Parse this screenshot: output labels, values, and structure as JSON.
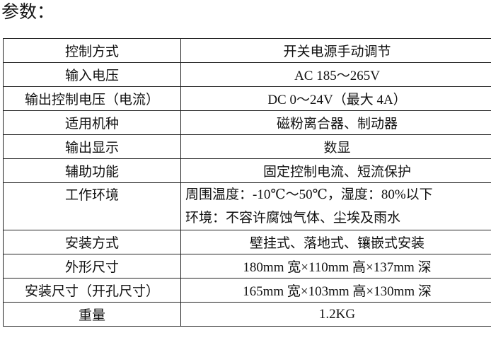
{
  "title": "参数：",
  "rows": [
    {
      "label": "控制方式",
      "value": "开关电源手动调节"
    },
    {
      "label": "输入电压",
      "value": "AC 185～265V"
    },
    {
      "label": "输出控制电压（电流）",
      "value": "DC 0～24V（最大 4A）"
    },
    {
      "label": "适用机种",
      "value": "磁粉离合器、制动器"
    },
    {
      "label": "输出显示",
      "value": "数显"
    },
    {
      "label": "辅助功能",
      "value": "固定控制电流、短流保护"
    },
    {
      "label": "工作环境",
      "value_lines": [
        "周围温度：-10℃～50℃，湿度：80%以下",
        "环境：不容许腐蚀气体、尘埃及雨水"
      ]
    },
    {
      "label": "安装方式",
      "value": "壁挂式、落地式、镶嵌式安装"
    },
    {
      "label": "外形尺寸",
      "value": "180mm 宽×110mm 高×137mm 深"
    },
    {
      "label": "安装尺寸（开孔尺寸）",
      "value": "165mm 宽×103mm 高×130mm 深"
    },
    {
      "label": "重量",
      "value": "1.2KG"
    }
  ]
}
